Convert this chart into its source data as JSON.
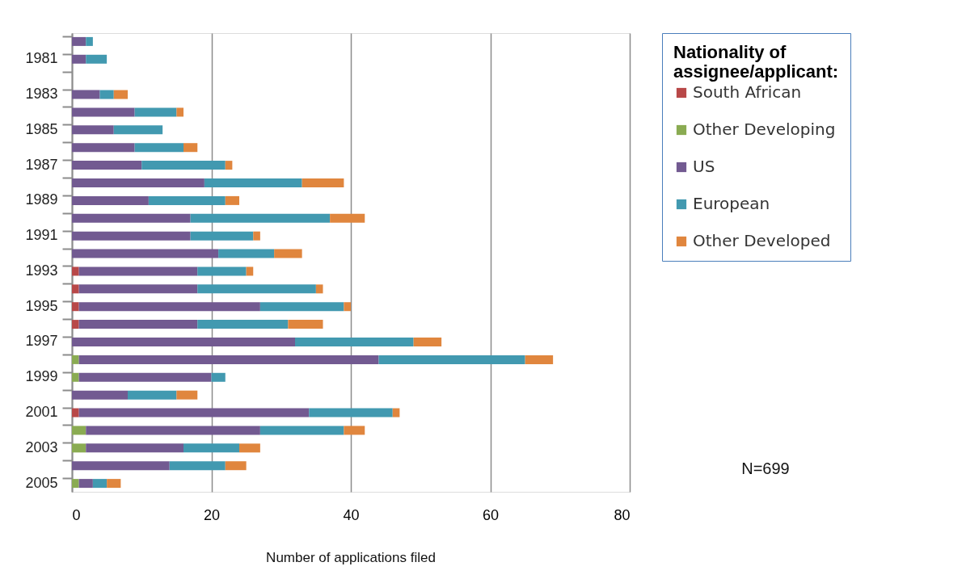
{
  "chart_data": {
    "type": "bar",
    "orientation": "horizontal",
    "stacked": true,
    "categories": [
      null,
      "1981",
      null,
      "1983",
      null,
      "1985",
      null,
      "1987",
      null,
      "1989",
      null,
      "1991",
      null,
      "1993",
      null,
      "1995",
      null,
      "1997",
      null,
      "1999",
      null,
      "2001",
      null,
      "2003",
      null,
      "2005"
    ],
    "series": [
      {
        "name": "South African",
        "color": "#b84848",
        "values": [
          0,
          0,
          0,
          0,
          0,
          0,
          0,
          0,
          0,
          0,
          0,
          0,
          0,
          1,
          1,
          1,
          1,
          0,
          0,
          0,
          0,
          1,
          0,
          0,
          0,
          0
        ]
      },
      {
        "name": "Other Developing",
        "color": "#8aab52",
        "values": [
          0,
          0,
          0,
          0,
          0,
          0,
          0,
          0,
          0,
          0,
          0,
          0,
          0,
          0,
          0,
          0,
          0,
          0,
          1,
          1,
          0,
          0,
          2,
          2,
          0,
          1
        ]
      },
      {
        "name": "US",
        "color": "#725a91",
        "values": [
          2,
          2,
          0,
          4,
          9,
          6,
          9,
          10,
          19,
          11,
          17,
          17,
          21,
          17,
          17,
          26,
          17,
          32,
          43,
          19,
          8,
          33,
          25,
          14,
          14,
          2
        ]
      },
      {
        "name": "European",
        "color": "#4299b0",
        "values": [
          1,
          3,
          0,
          2,
          6,
          7,
          7,
          12,
          14,
          11,
          20,
          9,
          8,
          7,
          17,
          12,
          13,
          17,
          21,
          2,
          7,
          12,
          12,
          8,
          8,
          2
        ]
      },
      {
        "name": "Other Developed",
        "color": "#e0863e",
        "values": [
          0,
          0,
          0,
          2,
          1,
          0,
          2,
          1,
          6,
          2,
          5,
          1,
          4,
          1,
          1,
          1,
          5,
          4,
          4,
          0,
          3,
          1,
          3,
          3,
          3,
          2
        ]
      }
    ],
    "xlabel": "Number of applications filed",
    "legend_title": "Nationality of assignee/applicant:",
    "legend": "right",
    "xlim": [
      0,
      80
    ],
    "xticks": [
      0,
      20,
      40,
      60,
      80
    ],
    "grid": "x",
    "annotations": [
      "N=699"
    ]
  }
}
